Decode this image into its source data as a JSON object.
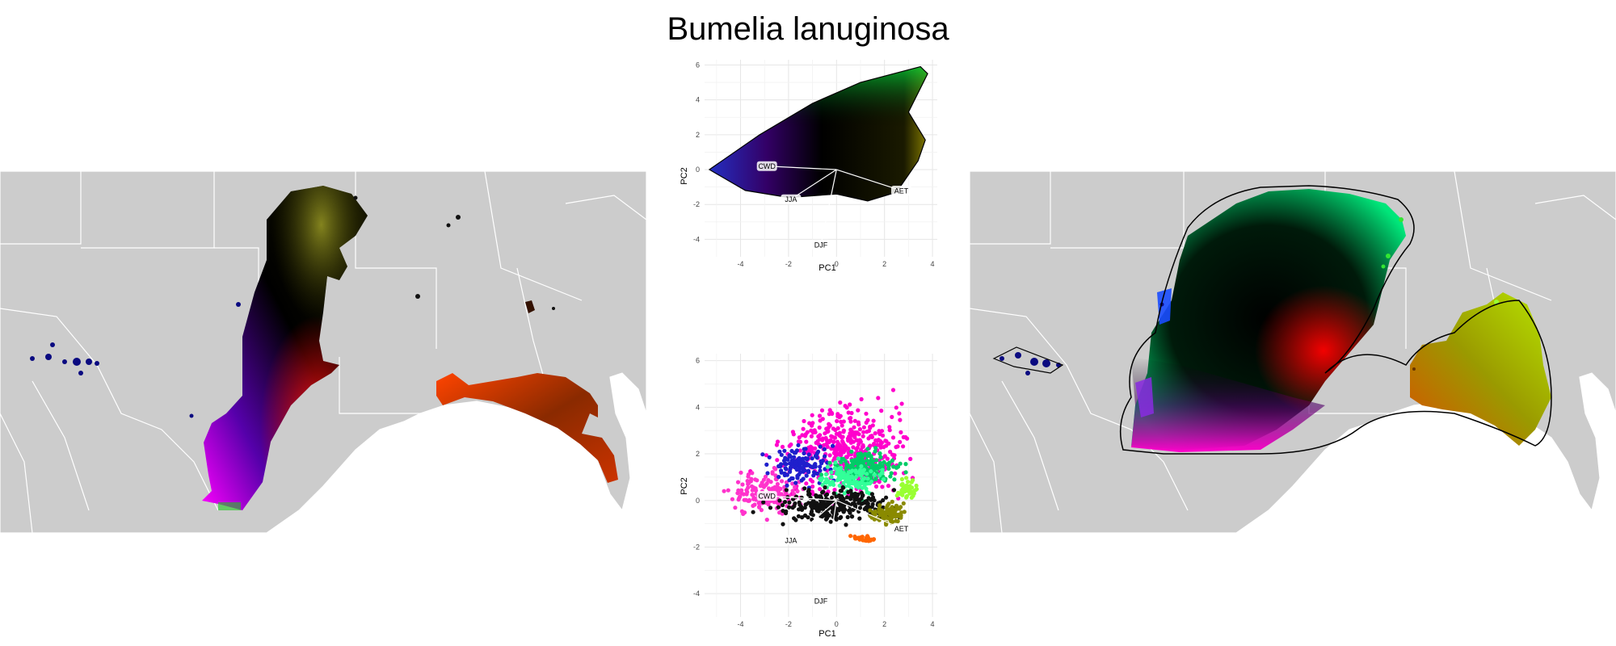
{
  "title": "Bumelia lanuginosa",
  "colors": {
    "land": "#cccccc",
    "boundary": "#ffffff",
    "grid": "#e6e6e6",
    "hull": "#000000",
    "label_bg": "#ffffff"
  },
  "chart_data": [
    {
      "type": "scatter",
      "panel": "pca-top",
      "title": "",
      "xlabel": "PC1",
      "ylabel": "PC2",
      "xlim": [
        -5.5,
        4.2
      ],
      "ylim": [
        -5,
        6.3
      ],
      "xticks": [
        -4,
        -2,
        0,
        2,
        4
      ],
      "yticks": [
        -4,
        -2,
        0,
        2,
        4,
        6
      ],
      "grid": true,
      "legend": "none",
      "coloring": "continuous RGB from climate space position",
      "hull": [
        [
          -5.3,
          0.0
        ],
        [
          -3.2,
          2.0
        ],
        [
          -1.0,
          3.8
        ],
        [
          1.0,
          5.0
        ],
        [
          3.5,
          5.9
        ],
        [
          3.8,
          5.5
        ],
        [
          3.0,
          3.3
        ],
        [
          3.7,
          1.7
        ],
        [
          3.4,
          0.5
        ],
        [
          2.5,
          -1.3
        ],
        [
          1.3,
          -1.8
        ],
        [
          0,
          -1.4
        ],
        [
          -2.0,
          -1.6
        ],
        [
          -3.8,
          -1.2
        ],
        [
          -5.3,
          0.0
        ]
      ],
      "loadings": [
        {
          "label": "CWD",
          "x": -2.9,
          "y": 0.2
        },
        {
          "label": "JJA",
          "x": -1.9,
          "y": -1.7
        },
        {
          "label": "DJF",
          "x": -0.65,
          "y": -4.3
        },
        {
          "label": "AET",
          "x": 2.7,
          "y": -1.2
        }
      ]
    },
    {
      "type": "scatter",
      "panel": "pca-bottom",
      "title": "",
      "xlabel": "PC1",
      "ylabel": "PC2",
      "xlim": [
        -5.5,
        4.2
      ],
      "ylim": [
        -5,
        6.3
      ],
      "xticks": [
        -4,
        -2,
        0,
        2,
        4
      ],
      "yticks": [
        -4,
        -2,
        0,
        2,
        4,
        6
      ],
      "grid": true,
      "legend": "none",
      "coloring": "discrete cluster colors",
      "clusters": [
        {
          "color": "#ff00cc",
          "cx": 0.3,
          "cy": 2.2,
          "sx": 2.4,
          "sy": 1.6,
          "n": 420
        },
        {
          "color": "#ff33cc",
          "cx": -3.0,
          "cy": 0.3,
          "sx": 1.2,
          "sy": 0.8,
          "n": 160
        },
        {
          "color": "#1f1fcc",
          "cx": -1.5,
          "cy": 1.6,
          "sx": 1.0,
          "sy": 0.7,
          "n": 130
        },
        {
          "color": "#00cc66",
          "cx": 1.2,
          "cy": 1.4,
          "sx": 1.1,
          "sy": 0.6,
          "n": 170
        },
        {
          "color": "#33ff99",
          "cx": 0.6,
          "cy": 0.9,
          "sx": 1.0,
          "sy": 0.5,
          "n": 120
        },
        {
          "color": "#111111",
          "cx": 0.0,
          "cy": -0.2,
          "sx": 2.0,
          "sy": 0.6,
          "n": 260
        },
        {
          "color": "#8a8a00",
          "cx": 2.2,
          "cy": -0.6,
          "sx": 0.7,
          "sy": 0.4,
          "n": 90
        },
        {
          "color": "#99ff33",
          "cx": 3.0,
          "cy": 0.5,
          "sx": 0.4,
          "sy": 0.4,
          "n": 50
        },
        {
          "color": "#ff6600",
          "cx": 1.0,
          "cy": -1.7,
          "sx": 0.5,
          "sy": 0.15,
          "n": 30
        }
      ],
      "loadings": [
        {
          "label": "CWD",
          "x": -2.9,
          "y": 0.2
        },
        {
          "label": "JJA",
          "x": -1.9,
          "y": -1.7
        },
        {
          "label": "DJF",
          "x": -0.65,
          "y": -4.3
        },
        {
          "label": "AET",
          "x": 2.7,
          "y": -1.2
        }
      ]
    }
  ]
}
